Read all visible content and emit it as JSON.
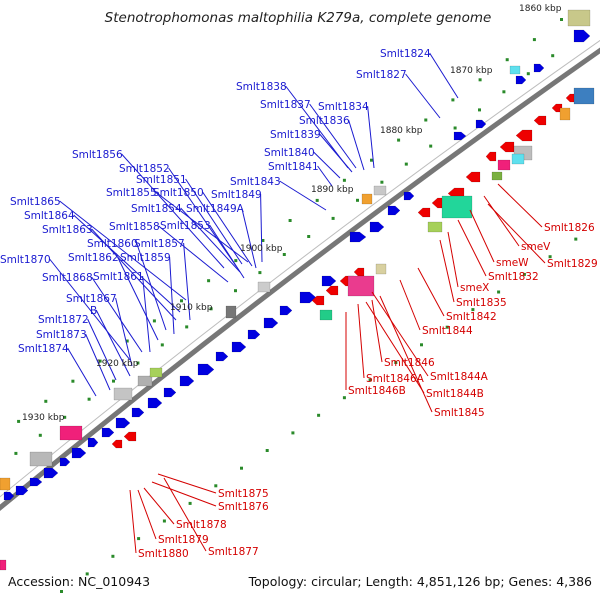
{
  "title": "Stenotrophomonas maltophilia K279a, complete genome",
  "footer": {
    "accession": "Accession: NC_010943",
    "summary": "Topology: circular; Length: 4,851,126 bp; Genes: 4,386"
  },
  "kbp_labels": [
    "1860 kbp",
    "1870 kbp",
    "1880 kbp",
    "1890 kbp",
    "1900 kbp",
    "1910 kbp",
    "1920 kbp",
    "1930 kbp"
  ],
  "blue_labels": [
    "Smlt1824",
    "Smlt1827",
    "Smlt1838",
    "Smlt1837",
    "Smlt1834",
    "Smlt1836",
    "Smlt1839",
    "Smlt1840",
    "Smlt1841",
    "Smlt1843",
    "Smlt1856",
    "Smlt1852",
    "Smlt1851",
    "Smlt1855",
    "Smlt1850",
    "Smlt1849",
    "Smlt1854",
    "Smlt1849A",
    "Smlt1858",
    "Smlt1853",
    "Smlt1865",
    "Smlt1864",
    "Smlt1863",
    "Smlt1860",
    "Smlt1857",
    "Smlt1862",
    "Smlt1859",
    "Smlt1870",
    "Smlt1868",
    "Smlt1861",
    "Smlt1867",
    "B",
    "Smlt1872",
    "Smlt1873",
    "Smlt1874"
  ],
  "red_labels": [
    "Smlt1826",
    "smeV",
    "Smlt1829",
    "smeW",
    "Smlt1832",
    "smeX",
    "Smlt1835",
    "Smlt1842",
    "Smlt1844",
    "Smlt1846",
    "Smlt1846A",
    "Smlt1844A",
    "Smlt1846B",
    "Smlt1844B",
    "Smlt1845",
    "Smlt1875",
    "Smlt1876",
    "Smlt1878",
    "Smlt1879",
    "Smlt1877",
    "Smlt1880"
  ],
  "colors": {
    "forward_gene": "#0000e0",
    "reverse_gene": "#ee0000",
    "backbone": "#777777",
    "tick": "#2a8a2a",
    "blue_label": "#1a1ad0",
    "red_label": "#d40000"
  }
}
